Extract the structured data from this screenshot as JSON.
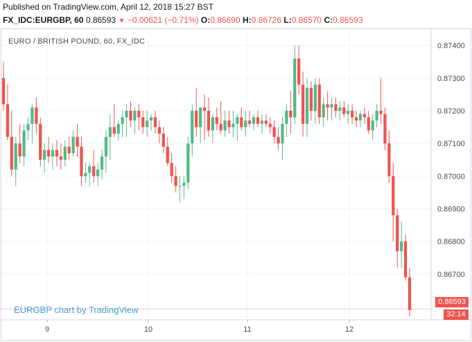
{
  "header": {
    "published": "Published on TradingView.com, April 12, 2018 15:27 BST",
    "symbol": "FX_IDC:EURGBP, 60",
    "last": "0.86593",
    "arrow": "▼",
    "change": "−0.00621 (−0.71%)",
    "o_label": "O:",
    "o_val": "0.86690",
    "h_label": "H:",
    "h_val": "0.86726",
    "l_label": "L:",
    "l_val": "0.86570",
    "c_label": "C:",
    "c_val": "0.86593"
  },
  "pane": {
    "title": "EURO / BRITISH POUND, 60, FX_IDC",
    "watermark": "EURGBP chart by TradingView",
    "price_tag": "0.86593",
    "countdown": "32:14"
  },
  "colors": {
    "up": "#26a69a",
    "up_fill": "#53b987",
    "down": "#ef5350",
    "grid": "#f0f3fa",
    "axis_text": "#4a4a4a",
    "last_line": "#ef5350"
  },
  "chart_data": {
    "type": "candlestick",
    "y_ticks": [
      "0.87400",
      "0.87300",
      "0.87200",
      "0.87100",
      "0.87000",
      "0.86900",
      "0.86800",
      "0.86700"
    ],
    "x_ticks": [
      "9",
      "10",
      "11",
      "12"
    ],
    "ylim": [
      0.8656,
      0.8745
    ],
    "last_price": 0.86593,
    "candles": [
      [
        0.873,
        0.8735,
        0.872,
        0.8722
      ],
      [
        0.8722,
        0.8728,
        0.8711,
        0.8712
      ],
      [
        0.8712,
        0.872,
        0.87,
        0.8702
      ],
      [
        0.8702,
        0.8712,
        0.8697,
        0.871
      ],
      [
        0.871,
        0.8716,
        0.8704,
        0.8706
      ],
      [
        0.8706,
        0.8716,
        0.8703,
        0.8714
      ],
      [
        0.8714,
        0.8718,
        0.8711,
        0.8716
      ],
      [
        0.8716,
        0.8722,
        0.871,
        0.8721
      ],
      [
        0.8721,
        0.8724,
        0.8713,
        0.8716
      ],
      [
        0.8716,
        0.8718,
        0.8703,
        0.8705
      ],
      [
        0.8705,
        0.871,
        0.8701,
        0.8708
      ],
      [
        0.8708,
        0.8712,
        0.8704,
        0.8706
      ],
      [
        0.8706,
        0.871,
        0.8702,
        0.8708
      ],
      [
        0.8708,
        0.8711,
        0.8703,
        0.8706
      ],
      [
        0.8706,
        0.871,
        0.8702,
        0.8705
      ],
      [
        0.8705,
        0.8711,
        0.8703,
        0.8709
      ],
      [
        0.8709,
        0.8712,
        0.8705,
        0.8707
      ],
      [
        0.8707,
        0.8714,
        0.8706,
        0.8712
      ],
      [
        0.8712,
        0.8716,
        0.8706,
        0.8709
      ],
      [
        0.8709,
        0.8712,
        0.8697,
        0.87
      ],
      [
        0.87,
        0.8704,
        0.8698,
        0.8701
      ],
      [
        0.8701,
        0.8704,
        0.8697,
        0.8703
      ],
      [
        0.8703,
        0.8708,
        0.8698,
        0.87
      ],
      [
        0.87,
        0.8704,
        0.8697,
        0.8702
      ],
      [
        0.8702,
        0.8708,
        0.8699,
        0.8706
      ],
      [
        0.8706,
        0.8714,
        0.8701,
        0.8712
      ],
      [
        0.8712,
        0.8719,
        0.8705,
        0.8715
      ],
      [
        0.8715,
        0.8722,
        0.8712,
        0.8713
      ],
      [
        0.8713,
        0.8717,
        0.8711,
        0.8716
      ],
      [
        0.8716,
        0.872,
        0.8712,
        0.8718
      ],
      [
        0.8718,
        0.8722,
        0.8712,
        0.872
      ],
      [
        0.872,
        0.8723,
        0.8715,
        0.8717
      ],
      [
        0.8717,
        0.8721,
        0.8713,
        0.872
      ],
      [
        0.872,
        0.8722,
        0.8714,
        0.8718
      ],
      [
        0.8718,
        0.872,
        0.8713,
        0.8715
      ],
      [
        0.8715,
        0.872,
        0.8712,
        0.8717
      ],
      [
        0.8717,
        0.8719,
        0.8714,
        0.8718
      ],
      [
        0.8718,
        0.872,
        0.8713,
        0.8715
      ],
      [
        0.8715,
        0.8717,
        0.871,
        0.8713
      ],
      [
        0.8713,
        0.8715,
        0.8707,
        0.8709
      ],
      [
        0.8709,
        0.8712,
        0.8703,
        0.8704
      ],
      [
        0.8704,
        0.8707,
        0.8698,
        0.87
      ],
      [
        0.87,
        0.8703,
        0.8695,
        0.8697
      ],
      [
        0.8697,
        0.87,
        0.8692,
        0.8697
      ],
      [
        0.8697,
        0.87,
        0.8693,
        0.8698
      ],
      [
        0.8698,
        0.8712,
        0.8696,
        0.871
      ],
      [
        0.871,
        0.8722,
        0.8706,
        0.872
      ],
      [
        0.872,
        0.8727,
        0.8712,
        0.8715
      ],
      [
        0.8715,
        0.8721,
        0.871,
        0.8721
      ],
      [
        0.8721,
        0.8725,
        0.8711,
        0.872
      ],
      [
        0.872,
        0.8724,
        0.8712,
        0.8714
      ],
      [
        0.8714,
        0.8719,
        0.871,
        0.8718
      ],
      [
        0.8718,
        0.8721,
        0.8714,
        0.8716
      ],
      [
        0.8716,
        0.8723,
        0.8713,
        0.8714
      ],
      [
        0.8714,
        0.872,
        0.8712,
        0.8717
      ],
      [
        0.8717,
        0.872,
        0.8713,
        0.8715
      ],
      [
        0.8715,
        0.872,
        0.8712,
        0.8716
      ],
      [
        0.8716,
        0.8719,
        0.8711,
        0.8718
      ],
      [
        0.8718,
        0.8721,
        0.8714,
        0.8715
      ],
      [
        0.8715,
        0.872,
        0.8712,
        0.8717
      ],
      [
        0.8717,
        0.872,
        0.8715,
        0.8716
      ],
      [
        0.8716,
        0.8719,
        0.8714,
        0.8718
      ],
      [
        0.8718,
        0.872,
        0.8715,
        0.8716
      ],
      [
        0.8716,
        0.8719,
        0.8713,
        0.8717
      ],
      [
        0.8717,
        0.8719,
        0.8715,
        0.8716
      ],
      [
        0.8716,
        0.8718,
        0.8713,
        0.8715
      ],
      [
        0.8715,
        0.8717,
        0.871,
        0.8712
      ],
      [
        0.8712,
        0.8715,
        0.8708,
        0.871
      ],
      [
        0.871,
        0.8718,
        0.8705,
        0.8716
      ],
      [
        0.8716,
        0.8722,
        0.8712,
        0.872
      ],
      [
        0.872,
        0.8726,
        0.8713,
        0.8718
      ],
      [
        0.8718,
        0.874,
        0.8716,
        0.8736
      ],
      [
        0.8736,
        0.874,
        0.8725,
        0.8728
      ],
      [
        0.8728,
        0.8732,
        0.8712,
        0.8716
      ],
      [
        0.8716,
        0.873,
        0.8712,
        0.8727
      ],
      [
        0.8727,
        0.8729,
        0.8717,
        0.872
      ],
      [
        0.872,
        0.873,
        0.8716,
        0.8728
      ],
      [
        0.8728,
        0.873,
        0.8716,
        0.8718
      ],
      [
        0.8718,
        0.8724,
        0.8715,
        0.8722
      ],
      [
        0.8722,
        0.8726,
        0.8717,
        0.8721
      ],
      [
        0.8721,
        0.8724,
        0.8717,
        0.8722
      ],
      [
        0.8722,
        0.8724,
        0.8718,
        0.872
      ],
      [
        0.872,
        0.8723,
        0.8717,
        0.8721
      ],
      [
        0.8721,
        0.8723,
        0.8718,
        0.8719
      ],
      [
        0.8719,
        0.8722,
        0.8716,
        0.872
      ],
      [
        0.872,
        0.8722,
        0.8716,
        0.8718
      ],
      [
        0.8718,
        0.872,
        0.8715,
        0.8717
      ],
      [
        0.8717,
        0.872,
        0.8715,
        0.8719
      ],
      [
        0.8719,
        0.8721,
        0.8716,
        0.8718
      ],
      [
        0.8718,
        0.872,
        0.8713,
        0.8714
      ],
      [
        0.8714,
        0.8719,
        0.8711,
        0.8717
      ],
      [
        0.8717,
        0.8722,
        0.8715,
        0.872
      ],
      [
        0.872,
        0.873,
        0.8716,
        0.8719
      ],
      [
        0.8719,
        0.8721,
        0.8708,
        0.871
      ],
      [
        0.871,
        0.8714,
        0.8698,
        0.87
      ],
      [
        0.87,
        0.8704,
        0.868,
        0.8688
      ],
      [
        0.8688,
        0.869,
        0.8672,
        0.8677
      ],
      [
        0.8677,
        0.8686,
        0.8672,
        0.868
      ],
      [
        0.868,
        0.8682,
        0.8668,
        0.8669
      ],
      [
        0.8669,
        0.8672,
        0.8657,
        0.8659
      ]
    ]
  }
}
